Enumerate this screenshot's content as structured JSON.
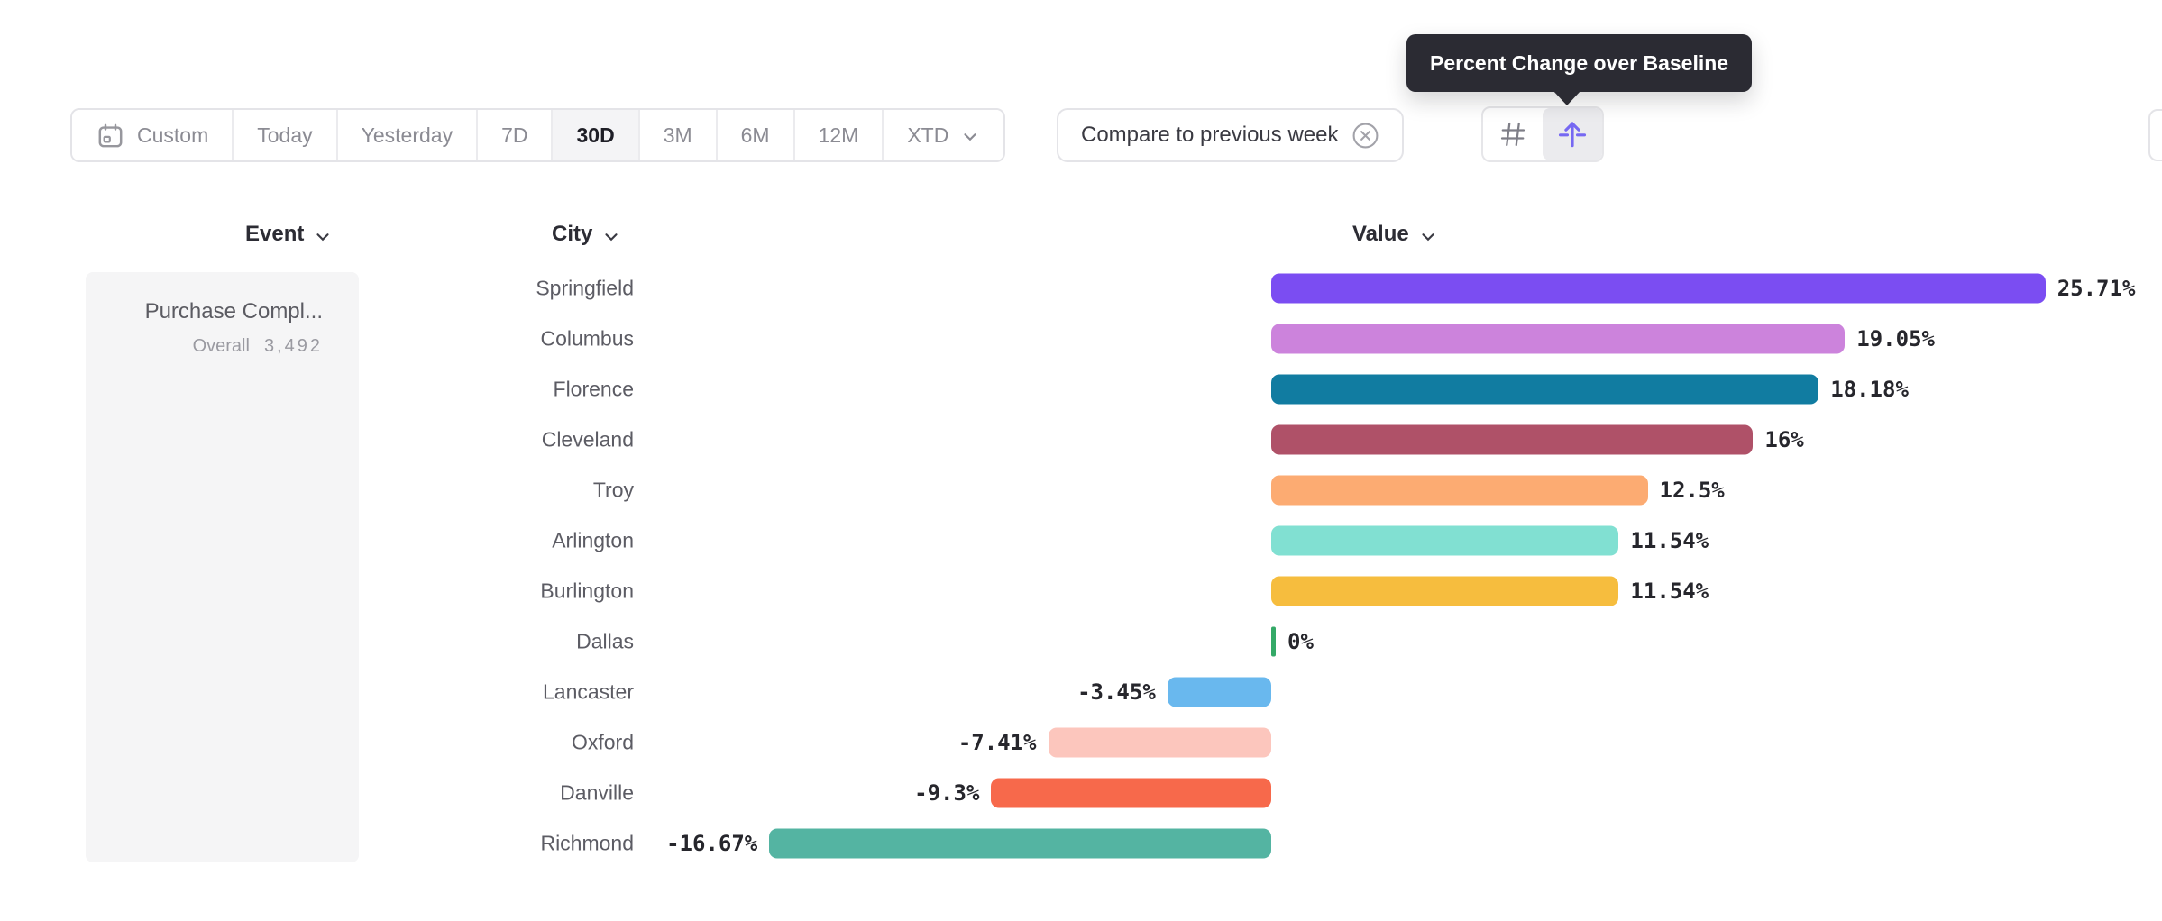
{
  "accent_color": "#7668f2",
  "tooltip": {
    "text": "Percent Change over Baseline"
  },
  "toolbar": {
    "date_ranges": [
      {
        "label": "Custom",
        "icon": "calendar-icon",
        "active": false
      },
      {
        "label": "Today",
        "active": false
      },
      {
        "label": "Yesterday",
        "active": false
      },
      {
        "label": "7D",
        "active": false
      },
      {
        "label": "30D",
        "active": true
      },
      {
        "label": "3M",
        "active": false
      },
      {
        "label": "6M",
        "active": false
      },
      {
        "label": "12M",
        "active": false
      },
      {
        "label": "XTD",
        "chevron": true,
        "active": false
      }
    ],
    "compare_label": "Compare to previous week",
    "view_toggle": [
      {
        "icon": "hash-icon",
        "active": false
      },
      {
        "icon": "baseline-arrow-icon",
        "active": true
      }
    ]
  },
  "columns": {
    "event": "Event",
    "city": "City",
    "value": "Value"
  },
  "chart_data": {
    "type": "bar",
    "orientation": "horizontal",
    "title": "Percent Change over Baseline",
    "unit": "%",
    "baseline": 0,
    "event": {
      "name": "Purchase Compl...",
      "overall_label": "Overall",
      "overall_value": "3,492"
    },
    "categories": [
      "Springfield",
      "Columbus",
      "Florence",
      "Cleveland",
      "Troy",
      "Arlington",
      "Burlington",
      "Dallas",
      "Lancaster",
      "Oxford",
      "Danville",
      "Richmond"
    ],
    "values": [
      25.71,
      19.05,
      18.18,
      16,
      12.5,
      11.54,
      11.54,
      0,
      -3.45,
      -7.41,
      -9.3,
      -16.67
    ],
    "labels": [
      "25.71%",
      "19.05%",
      "18.18%",
      "16%",
      "12.5%",
      "11.54%",
      "11.54%",
      "0%",
      "-3.45%",
      "-7.41%",
      "-9.3%",
      "-16.67%"
    ],
    "colors": [
      "#7b4df2",
      "#cc83dc",
      "#117ca1",
      "#af5168",
      "#fcab72",
      "#81e0d2",
      "#f6bd3e",
      "#34a967",
      "#69b8ee",
      "#fcc6bd",
      "#f7694b",
      "#54b4a2"
    ]
  }
}
